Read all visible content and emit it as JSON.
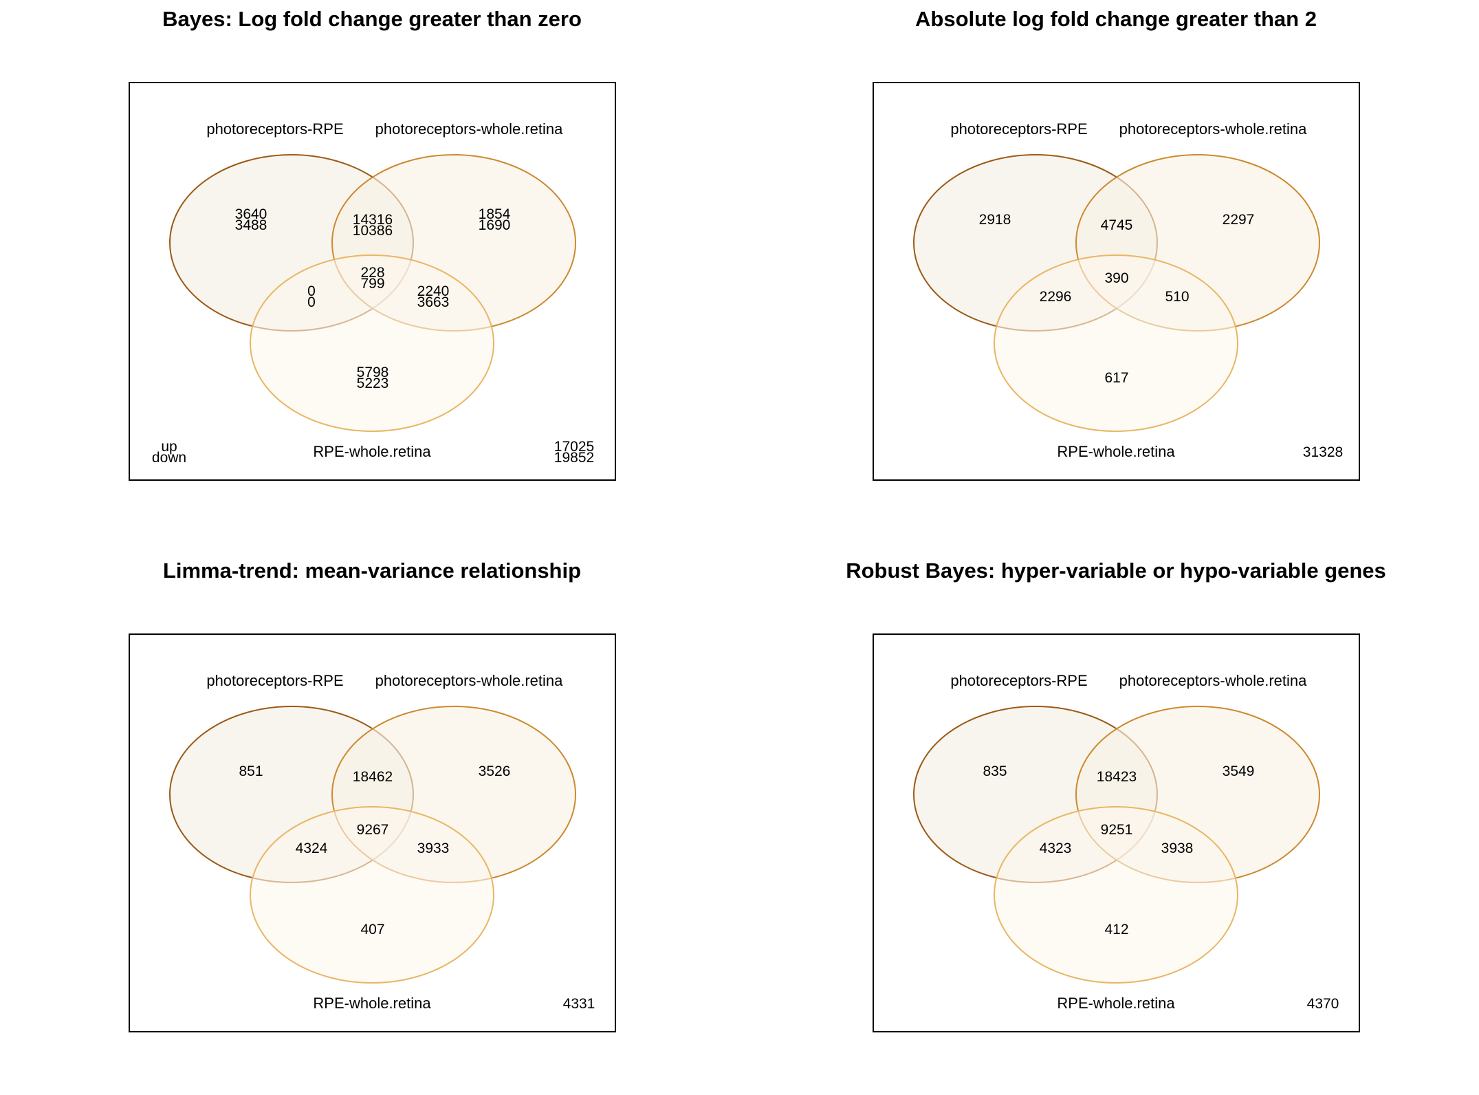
{
  "panels": [
    {
      "title": "Bayes: Log fold change greater than zero",
      "set_labels": [
        "photoreceptors-RPE",
        "photoreceptors-whole.retina",
        "RPE-whole.retina"
      ],
      "regions": {
        "a_only": [
          "3640",
          "3488"
        ],
        "b_only": [
          "1854",
          "1690"
        ],
        "c_only": [
          "5798",
          "5223"
        ],
        "ab_only": [
          "14316",
          "10386"
        ],
        "ac_only": [
          "0",
          "0"
        ],
        "bc_only": [
          "2240",
          "3663"
        ],
        "abc": [
          "228",
          "799"
        ]
      },
      "outside": [
        "17025",
        "19852"
      ],
      "direction_labels": [
        "up",
        "down"
      ]
    },
    {
      "title": "Absolute log fold change greater than 2",
      "set_labels": [
        "photoreceptors-RPE",
        "photoreceptors-whole.retina",
        "RPE-whole.retina"
      ],
      "regions": {
        "a_only": [
          "2918"
        ],
        "b_only": [
          "2297"
        ],
        "c_only": [
          "617"
        ],
        "ab_only": [
          "4745"
        ],
        "ac_only": [
          "2296"
        ],
        "bc_only": [
          "510"
        ],
        "abc": [
          "390"
        ]
      },
      "outside": [
        "31328"
      ]
    },
    {
      "title": "Limma-trend: mean-variance relationship",
      "set_labels": [
        "photoreceptors-RPE",
        "photoreceptors-whole.retina",
        "RPE-whole.retina"
      ],
      "regions": {
        "a_only": [
          "851"
        ],
        "b_only": [
          "3526"
        ],
        "c_only": [
          "407"
        ],
        "ab_only": [
          "18462"
        ],
        "ac_only": [
          "4324"
        ],
        "bc_only": [
          "3933"
        ],
        "abc": [
          "9267"
        ]
      },
      "outside": [
        "4331"
      ]
    },
    {
      "title": "Robust Bayes: hyper-variable or hypo-variable genes",
      "set_labels": [
        "photoreceptors-RPE",
        "photoreceptors-whole.retina",
        "RPE-whole.retina"
      ],
      "regions": {
        "a_only": [
          "835"
        ],
        "b_only": [
          "3549"
        ],
        "c_only": [
          "412"
        ],
        "ab_only": [
          "18423"
        ],
        "ac_only": [
          "4323"
        ],
        "bc_only": [
          "3938"
        ],
        "abc": [
          "9251"
        ]
      },
      "outside": [
        "4370"
      ]
    }
  ],
  "colors": {
    "set_a_stroke": "#9c5a16",
    "set_b_stroke": "#cc8a2e",
    "set_c_stroke": "#e8b664",
    "set_a_fill": "#f3ece2",
    "set_b_fill": "#f9f1e4",
    "set_c_fill": "#fdf7ec",
    "box": "#000000"
  }
}
